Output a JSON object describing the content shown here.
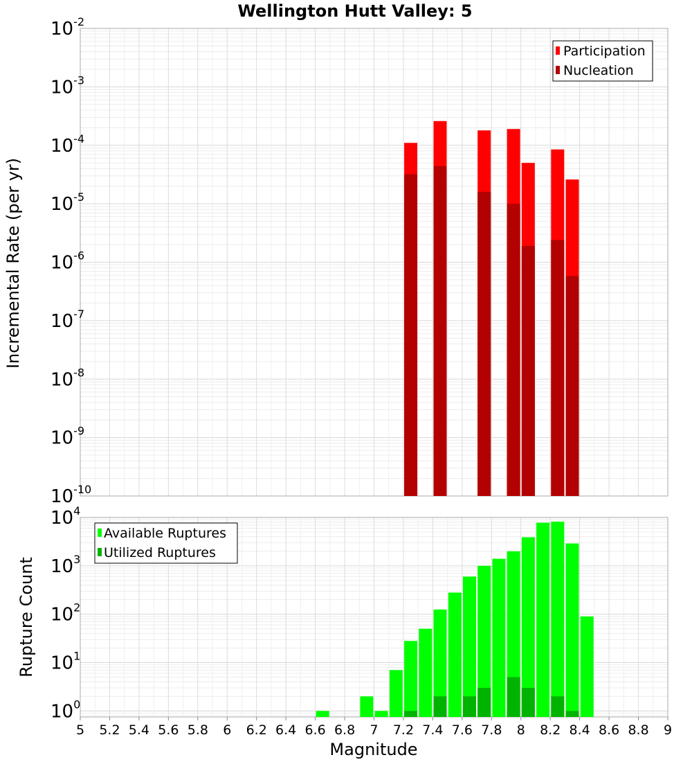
{
  "title": "Wellington Hutt Valley: 5",
  "chart_data": [
    {
      "type": "bar",
      "ylabel": "Incremental Rate (per yr)",
      "y_scale": "log",
      "ylim": [
        1e-10,
        0.01
      ],
      "xlim": [
        5,
        9
      ],
      "grid": true,
      "legend_position": "top-right",
      "x": [
        7.25,
        7.45,
        7.75,
        7.95,
        8.05,
        8.25,
        8.35
      ],
      "series": [
        {
          "name": "Participation",
          "color": "#ff0000",
          "values": [
            0.00011,
            0.00026,
            0.00018,
            0.00019,
            5e-05,
            8.5e-05,
            2.6e-05
          ]
        },
        {
          "name": "Nucleation",
          "color": "#b30000",
          "values": [
            3.2e-05,
            4.4e-05,
            1.6e-05,
            1e-05,
            1.9e-06,
            2.4e-06,
            5.8e-07
          ]
        }
      ]
    },
    {
      "type": "bar",
      "xlabel": "Magnitude",
      "ylabel": "Rupture Count",
      "y_scale": "log",
      "ylim": [
        0.75,
        10000
      ],
      "xlim": [
        5,
        9
      ],
      "grid": true,
      "legend_position": "top-left",
      "x": [
        6.65,
        6.95,
        7.05,
        7.15,
        7.25,
        7.35,
        7.45,
        7.55,
        7.65,
        7.75,
        7.85,
        7.95,
        8.05,
        8.15,
        8.25,
        8.35,
        8.45
      ],
      "series": [
        {
          "name": "Available Ruptures",
          "color": "#00ff00",
          "values": [
            1,
            2,
            1,
            7,
            28,
            50,
            125,
            280,
            600,
            1000,
            1400,
            2000,
            3900,
            7800,
            8200,
            2900,
            90
          ]
        },
        {
          "name": "Utilized Ruptures",
          "color": "#00b300",
          "values": [
            0,
            0,
            0,
            0,
            1,
            0,
            2,
            0,
            2,
            3,
            0,
            5,
            3,
            0,
            2,
            1,
            0
          ]
        }
      ]
    }
  ],
  "x_ticks": [
    "5",
    "5.2",
    "5.4",
    "5.6",
    "5.8",
    "6",
    "6.2",
    "6.4",
    "6.6",
    "6.8",
    "7",
    "7.2",
    "7.4",
    "7.6",
    "7.8",
    "8",
    "8.2",
    "8.4",
    "8.6",
    "8.8",
    "9"
  ],
  "top_y_ticks": [
    {
      "base": "10",
      "exp": "-2"
    },
    {
      "base": "10",
      "exp": "-3"
    },
    {
      "base": "10",
      "exp": "-4"
    },
    {
      "base": "10",
      "exp": "-5"
    },
    {
      "base": "10",
      "exp": "-6"
    },
    {
      "base": "10",
      "exp": "-7"
    },
    {
      "base": "10",
      "exp": "-8"
    },
    {
      "base": "10",
      "exp": "-9"
    },
    {
      "base": "10",
      "exp": "-10"
    }
  ],
  "bottom_y_ticks": [
    {
      "base": "10",
      "exp": "4"
    },
    {
      "base": "10",
      "exp": "3"
    },
    {
      "base": "10",
      "exp": "2"
    },
    {
      "base": "10",
      "exp": "1"
    },
    {
      "base": "10",
      "exp": "0"
    }
  ]
}
